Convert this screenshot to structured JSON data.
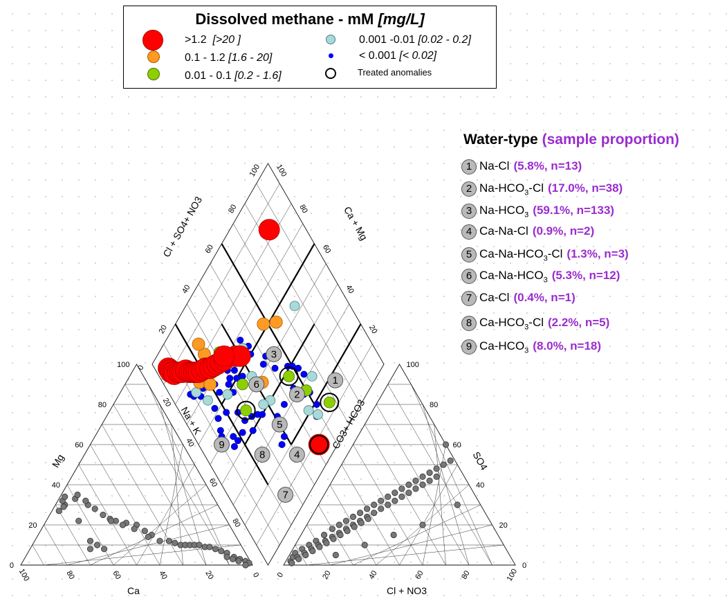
{
  "legend": {
    "title": "Dissolved methane - mM",
    "title_unit": "[mg/L]",
    "items": [
      {
        "label": ">1.2",
        "range": "[>20 ]",
        "color": "#ff0000",
        "size": "large"
      },
      {
        "label": "0.1 - 1.2",
        "range": "[1.6 - 20]",
        "color": "#ff9a22",
        "size": "medium"
      },
      {
        "label": "0.01 - 0.1",
        "range": "[0.2 - 1.6]",
        "color": "#8cd000",
        "size": "medium"
      },
      {
        "label": "0.001 -0.01",
        "range": "[0.02 - 0.2]",
        "color": "#a9d9d8",
        "size": "small"
      },
      {
        "label": "< 0.001",
        "range": "[< 0.02]",
        "color": "#0000ff",
        "size": "tiny"
      },
      {
        "label": "Treated anomalies",
        "range": "",
        "color": "#000000",
        "size": "ring"
      }
    ]
  },
  "water_type": {
    "title": "Water-type",
    "title_prop": "(sample proportion)",
    "items": [
      {
        "num": "1",
        "name": "Na-Cl",
        "sub": "",
        "name_end": "",
        "prop": "(5.8%, n=13)"
      },
      {
        "num": "2",
        "name": "Na-HCO",
        "sub": "3",
        "name_end": "-Cl",
        "prop": "(17.0%, n=38)"
      },
      {
        "num": "3",
        "name": "Na-HCO",
        "sub": "3",
        "name_end": "",
        "prop": "(59.1%, n=133)"
      },
      {
        "num": "4",
        "name": "Ca-Na-Cl",
        "sub": "",
        "name_end": "",
        "prop": "(0.9%, n=2)"
      },
      {
        "num": "5",
        "name": "Ca-Na-HCO",
        "sub": "3",
        "name_end": "-Cl",
        "prop": "(1.3%, n=3)"
      },
      {
        "num": "6",
        "name": "Ca-Na-HCO",
        "sub": "3",
        "name_end": "",
        "prop": "(5.3%, n=12)"
      },
      {
        "num": "7",
        "name": "Ca-Cl",
        "sub": "",
        "name_end": "",
        "prop": "(0.4%, n=1)"
      },
      {
        "num": "8",
        "name": "Ca-HCO",
        "sub": "3",
        "name_end": "-Cl",
        "prop": "(2.2%, n=5)"
      },
      {
        "num": "9",
        "name": "Ca-HCO",
        "sub": "3",
        "name_end": "",
        "prop": "(8.0%, n=18)"
      }
    ]
  },
  "colors": {
    "high": "#ff0000",
    "mid": "#ff9a22",
    "low": "#8cd000",
    "vlow": "#a9d9d8",
    "trace": "#0000ff",
    "anion_point": "#777777",
    "zone_label": "#b9b9b9",
    "prop_text": "#9a2ccf"
  },
  "chart_data": {
    "type": "scatter",
    "subtype": "piper-diagram",
    "axes": {
      "cation_left": "Mg",
      "cation_bottom": "Ca",
      "anion_right": "SO4",
      "anion_bottom": "Cl + NO3",
      "diamond_upper_left": "Cl + SO4+ NO3",
      "diamond_upper_right": "Ca + Mg",
      "diamond_lower_left": "Na + K",
      "diamond_lower_right": "CO3+ HCO3"
    },
    "ticks": [
      "0",
      "20",
      "40",
      "60",
      "80",
      "100"
    ],
    "tick_labels_cation_left": [
      "100",
      "80",
      "60",
      "40",
      "20",
      "0"
    ],
    "tick_labels_cation_bottom": [
      "100",
      "80",
      "60",
      "40",
      "20",
      "0"
    ],
    "tick_labels_anion_right": [
      "100",
      "80",
      "60",
      "40",
      "20",
      "0"
    ],
    "tick_labels_anion_bottom": [
      "0",
      "20",
      "40",
      "60",
      "80",
      "100"
    ],
    "tick_labels_diamond_upper_left": [
      "0",
      "20",
      "40",
      "60",
      "80",
      "100"
    ],
    "tick_labels_diamond_upper_right": [
      "20",
      "40",
      "60",
      "80",
      "100"
    ],
    "tick_labels_diamond_lower_left": [
      "20",
      "40",
      "60",
      "80"
    ],
    "zones": [
      {
        "label": "1",
        "x": 17,
        "y": 75
      },
      {
        "label": "2",
        "x": 30,
        "y": 55
      },
      {
        "label": "3",
        "x": 50,
        "y": 55
      },
      {
        "label": "4",
        "x": 15,
        "y": 40
      },
      {
        "label": "5",
        "x": 30,
        "y": 40
      },
      {
        "label": "6",
        "x": 50,
        "y": 40
      },
      {
        "label": "7",
        "x": 10,
        "y": 25
      },
      {
        "label": "8",
        "x": 30,
        "y": 25
      },
      {
        "label": "9",
        "x": 50,
        "y": 10
      }
    ],
    "diamond_series": [
      {
        "name": ">1.2",
        "class": "high",
        "points": [
          [
            6,
            92
          ],
          [
            6,
            91
          ],
          [
            6,
            90
          ],
          [
            7,
            89
          ],
          [
            7,
            88
          ],
          [
            9,
            87
          ],
          [
            10,
            86
          ],
          [
            11,
            85
          ],
          [
            13,
            84
          ],
          [
            14,
            82
          ],
          [
            15,
            81
          ],
          [
            16,
            80
          ],
          [
            17,
            79
          ],
          [
            18,
            78
          ],
          [
            20,
            77
          ],
          [
            22,
            76
          ],
          [
            24,
            74
          ],
          [
            26,
            73
          ],
          [
            28,
            72
          ],
          [
            30,
            71
          ],
          [
            32,
            70
          ],
          [
            38,
            66
          ],
          [
            40,
            64
          ],
          [
            52,
            8
          ],
          [
            84,
            83
          ],
          [
            33,
            71
          ]
        ]
      },
      {
        "name": "0.1 - 1.2",
        "class": "mid",
        "points": [
          [
            27,
            72
          ],
          [
            32,
            70
          ],
          [
            35,
            68
          ],
          [
            34,
            72
          ],
          [
            58,
            62
          ],
          [
            64,
            57
          ],
          [
            16,
            75
          ],
          [
            20,
            75
          ],
          [
            25,
            80
          ],
          [
            20,
            70
          ],
          [
            43,
            48
          ],
          [
            25,
            85
          ]
        ]
      },
      {
        "name": "0.01 - 0.1",
        "class": "low",
        "points": [
          [
            56,
            38
          ],
          [
            67,
            14
          ],
          [
            29,
            48
          ],
          [
            30,
            70
          ],
          [
            34,
            56
          ],
          [
            41,
            50
          ],
          [
            60,
            27
          ],
          [
            32,
            74
          ]
        ]
      },
      {
        "name": "0.001 -0.01",
        "class": "vlow",
        "points": [
          [
            40,
            54
          ],
          [
            40,
            64
          ],
          [
            43,
            65
          ],
          [
            76,
            53
          ],
          [
            14,
            81
          ],
          [
            15,
            67
          ],
          [
            25,
            60
          ],
          [
            59,
            16
          ],
          [
            56,
            21
          ],
          [
            66,
            28
          ],
          [
            12,
            74
          ],
          [
            42,
            40
          ],
          [
            38,
            42
          ]
        ]
      },
      {
        "name": "< 0.001",
        "class": "trace",
        "points": [
          [
            58,
            16
          ],
          [
            61,
            25
          ],
          [
            55,
            33
          ],
          [
            51,
            53
          ],
          [
            52,
            46
          ],
          [
            48,
            52
          ],
          [
            45,
            60
          ],
          [
            46,
            63
          ],
          [
            44,
            68
          ],
          [
            38,
            68
          ],
          [
            34,
            63
          ],
          [
            33,
            60
          ],
          [
            30,
            63
          ],
          [
            28,
            62
          ],
          [
            22,
            68
          ],
          [
            22,
            64
          ],
          [
            20,
            56
          ],
          [
            25,
            51
          ],
          [
            26,
            46
          ],
          [
            30,
            44
          ],
          [
            33,
            42
          ],
          [
            35,
            40
          ],
          [
            40,
            30
          ],
          [
            39,
            25
          ],
          [
            36,
            24
          ],
          [
            41,
            33
          ],
          [
            36,
            58
          ],
          [
            31,
            66
          ],
          [
            28,
            58
          ],
          [
            16,
            62
          ],
          [
            15,
            58
          ],
          [
            13,
            54
          ],
          [
            12,
            52
          ],
          [
            58,
            41
          ],
          [
            62,
            36
          ],
          [
            63,
            32
          ],
          [
            47,
            33
          ],
          [
            27,
            40
          ],
          [
            22,
            44
          ],
          [
            18,
            44
          ],
          [
            15,
            44
          ],
          [
            17,
            47
          ],
          [
            11,
            48
          ],
          [
            13,
            71
          ],
          [
            16,
            72
          ],
          [
            9,
            76
          ],
          [
            10,
            74
          ],
          [
            60,
            39
          ],
          [
            58,
            27
          ],
          [
            61,
            19
          ]
        ]
      }
    ],
    "treated_anomalies": [
      [
        52,
        8
      ],
      [
        56,
        38
      ],
      [
        67,
        14
      ],
      [
        29,
        48
      ]
    ],
    "cation_points": [
      [
        66,
        30
      ],
      [
        67,
        29
      ],
      [
        70,
        27
      ],
      [
        72,
        30
      ],
      [
        72,
        33
      ],
      [
        74,
        34
      ],
      [
        76,
        36
      ],
      [
        78,
        36
      ],
      [
        80,
        36
      ],
      [
        82,
        35
      ],
      [
        84,
        36
      ],
      [
        86,
        34
      ],
      [
        88,
        35
      ],
      [
        90,
        37
      ],
      [
        92,
        38
      ],
      [
        94,
        36
      ],
      [
        96,
        37
      ],
      [
        98,
        34
      ],
      [
        78,
        32
      ],
      [
        80,
        30
      ],
      [
        76,
        30
      ],
      [
        74,
        32
      ],
      [
        70,
        34
      ],
      [
        66,
        32
      ],
      [
        64,
        34
      ],
      [
        60,
        33
      ],
      [
        58,
        35
      ],
      [
        56,
        30
      ],
      [
        52,
        25
      ],
      [
        50,
        23
      ],
      [
        48,
        22
      ],
      [
        44,
        21
      ],
      [
        40,
        20
      ],
      [
        38,
        17
      ],
      [
        36,
        15
      ],
      [
        34,
        12
      ],
      [
        30,
        12
      ],
      [
        28,
        11
      ],
      [
        26,
        10
      ],
      [
        24,
        10
      ],
      [
        22,
        10
      ],
      [
        20,
        10
      ],
      [
        18,
        10
      ],
      [
        16,
        9
      ],
      [
        14,
        9
      ],
      [
        12,
        8
      ],
      [
        10,
        7
      ],
      [
        8,
        6
      ],
      [
        6,
        4
      ],
      [
        4,
        3
      ],
      [
        2,
        2
      ],
      [
        1,
        1
      ],
      [
        3,
        0
      ],
      [
        5,
        2
      ],
      [
        7,
        3
      ],
      [
        9,
        4
      ],
      [
        56,
        32
      ],
      [
        54,
        28
      ],
      [
        50,
        22
      ],
      [
        46,
        20
      ],
      [
        42,
        18
      ],
      [
        38,
        14
      ],
      [
        66,
        8
      ],
      [
        64,
        12
      ],
      [
        62,
        10
      ],
      [
        60,
        8
      ],
      [
        64,
        22
      ]
    ],
    "anion_points": [
      [
        2,
        2
      ],
      [
        2,
        4
      ],
      [
        2,
        6
      ],
      [
        4,
        8
      ],
      [
        6,
        10
      ],
      [
        8,
        12
      ],
      [
        10,
        15
      ],
      [
        12,
        18
      ],
      [
        14,
        20
      ],
      [
        16,
        22
      ],
      [
        18,
        24
      ],
      [
        20,
        26
      ],
      [
        22,
        28
      ],
      [
        24,
        30
      ],
      [
        26,
        32
      ],
      [
        28,
        34
      ],
      [
        30,
        36
      ],
      [
        32,
        38
      ],
      [
        34,
        40
      ],
      [
        36,
        42
      ],
      [
        38,
        44
      ],
      [
        40,
        46
      ],
      [
        42,
        48
      ],
      [
        44,
        50
      ],
      [
        46,
        52
      ],
      [
        48,
        54
      ],
      [
        50,
        56
      ],
      [
        52,
        60
      ],
      [
        54,
        62
      ],
      [
        56,
        64
      ],
      [
        58,
        66
      ],
      [
        60,
        68
      ],
      [
        62,
        70
      ],
      [
        64,
        72
      ],
      [
        66,
        74
      ],
      [
        68,
        76
      ],
      [
        70,
        78
      ],
      [
        72,
        80
      ],
      [
        74,
        82
      ],
      [
        76,
        84
      ],
      [
        78,
        86
      ],
      [
        80,
        88
      ],
      [
        82,
        90
      ],
      [
        84,
        92
      ],
      [
        86,
        94
      ],
      [
        88,
        96
      ],
      [
        4,
        4
      ],
      [
        6,
        6
      ],
      [
        8,
        8
      ],
      [
        10,
        10
      ],
      [
        12,
        12
      ],
      [
        14,
        14
      ],
      [
        16,
        16
      ],
      [
        18,
        18
      ],
      [
        20,
        20
      ],
      [
        22,
        22
      ],
      [
        24,
        24
      ],
      [
        26,
        26
      ],
      [
        28,
        28
      ],
      [
        30,
        30
      ],
      [
        32,
        32
      ],
      [
        34,
        34
      ],
      [
        36,
        36
      ],
      [
        38,
        38
      ],
      [
        40,
        40
      ],
      [
        42,
        42
      ],
      [
        44,
        44
      ],
      [
        3,
        1
      ],
      [
        5,
        3
      ],
      [
        7,
        5
      ],
      [
        9,
        7
      ],
      [
        11,
        9
      ],
      [
        13,
        11
      ],
      [
        15,
        13
      ],
      [
        17,
        15
      ],
      [
        19,
        17
      ],
      [
        21,
        19
      ],
      [
        23,
        21
      ],
      [
        25,
        23
      ],
      [
        40,
        60
      ],
      [
        42,
        62
      ],
      [
        44,
        64
      ],
      [
        46,
        66
      ],
      [
        48,
        68
      ],
      [
        50,
        70
      ],
      [
        52,
        72
      ],
      [
        54,
        74
      ],
      [
        56,
        76
      ],
      [
        58,
        78
      ],
      [
        60,
        80
      ],
      [
        62,
        82
      ],
      [
        64,
        84
      ],
      [
        66,
        86
      ],
      [
        68,
        88
      ],
      [
        70,
        90
      ],
      [
        72,
        92
      ],
      [
        74,
        94
      ],
      [
        76,
        96
      ],
      [
        78,
        98
      ],
      [
        80,
        80
      ],
      [
        82,
        82
      ],
      [
        84,
        84
      ],
      [
        86,
        86
      ],
      [
        20,
        5
      ],
      [
        30,
        10
      ],
      [
        40,
        15
      ],
      [
        50,
        20
      ],
      [
        60,
        30
      ],
      [
        70,
        40
      ]
    ]
  }
}
